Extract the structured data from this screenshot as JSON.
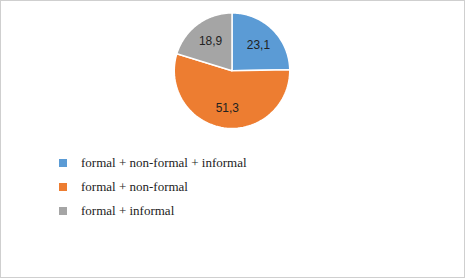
{
  "chart_data": {
    "type": "pie",
    "categories": [
      "formal + non-formal + informal",
      "formal + non-formal",
      "formal + informal"
    ],
    "values": [
      23.1,
      51.3,
      18.9
    ],
    "value_labels": [
      "23,1",
      "51,3",
      "18,9"
    ],
    "colors": [
      "#5b9bd5",
      "#ed7d31",
      "#a5a5a5"
    ],
    "data_labels": true,
    "legend": "bottom"
  }
}
